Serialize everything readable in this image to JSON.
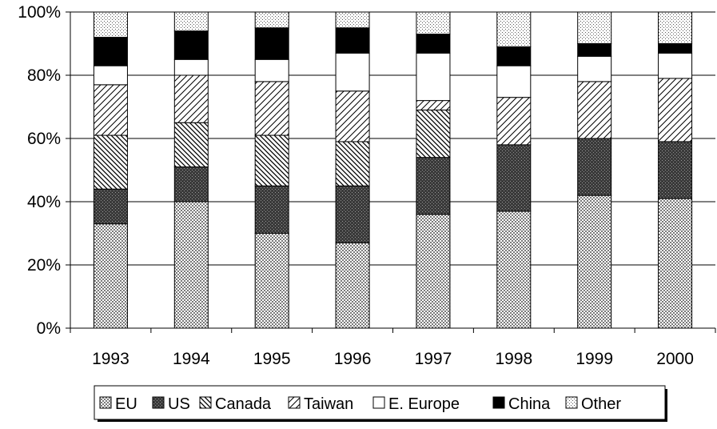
{
  "chart_data": {
    "type": "bar",
    "stacked": true,
    "normalized": true,
    "categories": [
      "1993",
      "1994",
      "1995",
      "1996",
      "1997",
      "1998",
      "1999",
      "2000"
    ],
    "series": [
      {
        "name": "EU",
        "pattern": "dots",
        "values": [
          33,
          40,
          30,
          27,
          36,
          37,
          42,
          41
        ]
      },
      {
        "name": "US",
        "pattern": "dark-dots",
        "values": [
          11,
          11,
          15,
          18,
          18,
          21,
          18,
          18
        ]
      },
      {
        "name": "Canada",
        "pattern": "back-hatch",
        "values": [
          17,
          14,
          16,
          14,
          15,
          0,
          0,
          0
        ]
      },
      {
        "name": "Taiwan",
        "pattern": "fwd-hatch",
        "values": [
          16,
          15,
          17,
          16,
          3,
          15,
          18,
          20
        ]
      },
      {
        "name": "E. Europe",
        "pattern": "white",
        "values": [
          6,
          5,
          7,
          12,
          15,
          10,
          8,
          8
        ]
      },
      {
        "name": "China",
        "pattern": "black",
        "values": [
          9,
          9,
          10,
          8,
          6,
          6,
          4,
          3
        ]
      },
      {
        "name": "Other",
        "pattern": "light-dots",
        "values": [
          8,
          6,
          5,
          5,
          7,
          11,
          10,
          10
        ]
      }
    ],
    "ylim": [
      0,
      100
    ],
    "yticks": [
      "0%",
      "20%",
      "40%",
      "60%",
      "80%",
      "100%"
    ],
    "grid": true,
    "legend_position": "bottom",
    "colors": {
      "dots": "#e6e6e6",
      "dark-dots": "#555555",
      "back-hatch": "#ffffff",
      "fwd-hatch": "#ffffff",
      "white": "#ffffff",
      "black": "#000000",
      "light-dots": "#ededed"
    }
  }
}
